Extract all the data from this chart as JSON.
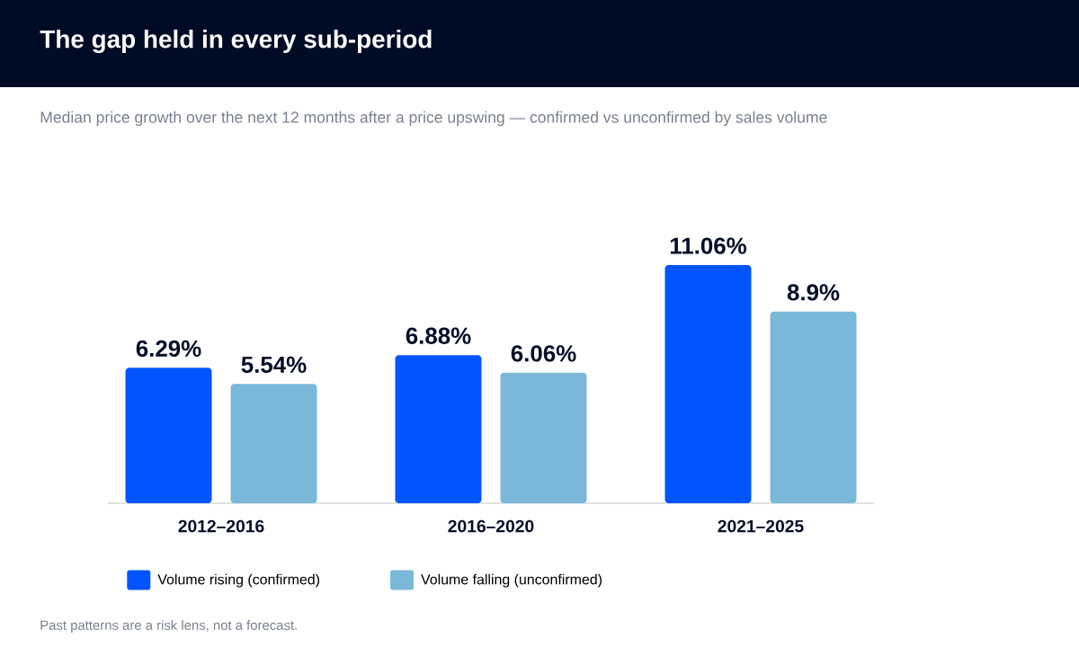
{
  "chart_data": {
    "type": "bar",
    "title": "The gap held in every sub-period",
    "subtitle": "Median price growth over the next 12 months after a price upswing — confirmed vs unconfirmed by sales volume",
    "categories": [
      "2012–2016",
      "2016–2020",
      "2021–2025"
    ],
    "series": [
      {
        "name": "Volume rising (confirmed)",
        "color": "#0055ff",
        "values": [
          6.29,
          6.88,
          11.06
        ],
        "value_labels": [
          "6.29%",
          "6.88%",
          "11.06%"
        ]
      },
      {
        "name": "Volume falling (unconfirmed)",
        "color": "#79b8d8",
        "values": [
          5.54,
          6.06,
          8.9
        ],
        "value_labels": [
          "5.54%",
          "6.06%",
          "8.9%"
        ]
      }
    ],
    "legend": "bottom",
    "annotations": [
      "Past patterns are a risk lens, not a forecast."
    ]
  }
}
